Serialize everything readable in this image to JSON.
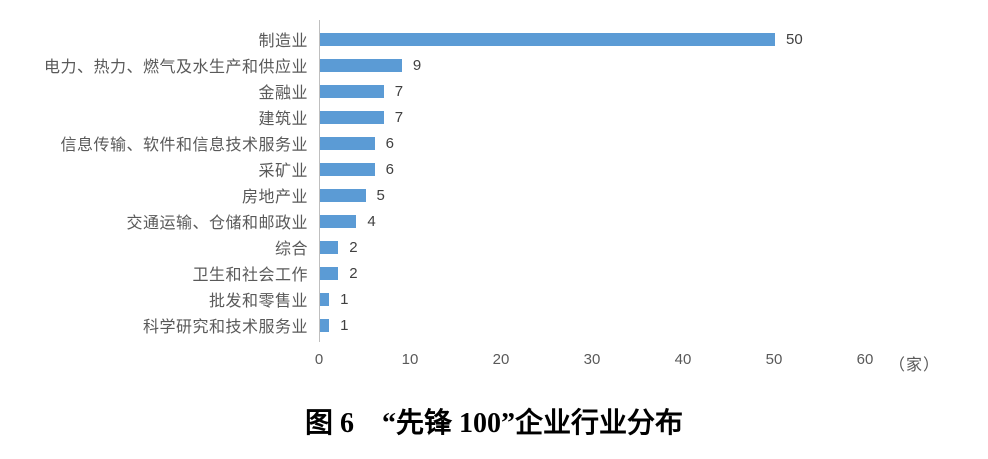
{
  "chart_data": {
    "type": "bar",
    "orientation": "horizontal",
    "title": "图 6　“先锋 100”企业行业分布",
    "categories": [
      "制造业",
      "电力、热力、燃气及水生产和供应业",
      "金融业",
      "建筑业",
      "信息传输、软件和信息技术服务业",
      "采矿业",
      "房地产业",
      "交通运输、仓储和邮政业",
      "综合",
      "卫生和社会工作",
      "批发和零售业",
      "科学研究和技术服务业"
    ],
    "values": [
      50,
      9,
      7,
      7,
      6,
      6,
      5,
      4,
      2,
      2,
      1,
      1
    ],
    "x_ticks": [
      "0",
      "10",
      "20",
      "30",
      "40",
      "50",
      "60"
    ],
    "x_tick_values": [
      0,
      10,
      20,
      30,
      40,
      50,
      60
    ],
    "x_unit": "（家）",
    "xlim": [
      0,
      60
    ],
    "bar_color": "#5b9bd5",
    "category_label_color": "#595959",
    "value_label_color": "#404040",
    "axis_line_color": "#bfbfbf",
    "grid": false,
    "value_labels": true,
    "legend_position": "none"
  }
}
